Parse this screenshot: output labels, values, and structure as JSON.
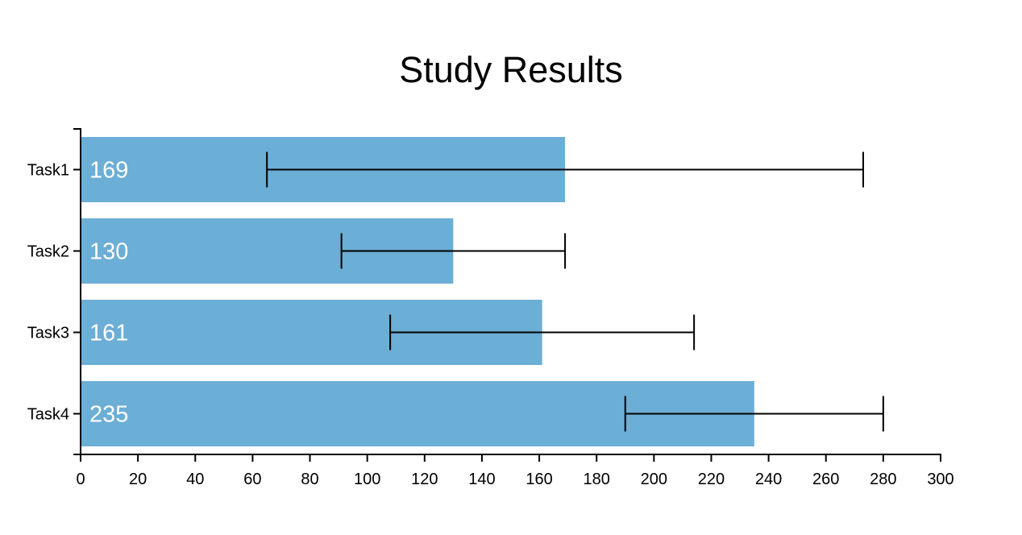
{
  "chart_data": {
    "type": "bar",
    "orientation": "horizontal",
    "title": "Study Results",
    "xlabel": "",
    "ylabel": "",
    "xlim": [
      0,
      300
    ],
    "x_ticks": [
      "0",
      "20",
      "40",
      "60",
      "80",
      "100",
      "120",
      "140",
      "160",
      "180",
      "200",
      "220",
      "240",
      "260",
      "280",
      "300"
    ],
    "categories": [
      "Task1",
      "Task2",
      "Task3",
      "Task4"
    ],
    "values": [
      169,
      130,
      161,
      235
    ],
    "value_labels": [
      "169",
      "130",
      "161",
      "235"
    ],
    "error_bars": [
      {
        "low": 65,
        "high": 273
      },
      {
        "low": 91,
        "high": 169
      },
      {
        "low": 108,
        "high": 214
      },
      {
        "low": 190,
        "high": 280
      }
    ],
    "grid": false,
    "legend": "none",
    "colors": {
      "bar": "#6baed6",
      "axis": "#000000",
      "error_bar": "#000000",
      "bar_label": "#ffffff"
    }
  }
}
